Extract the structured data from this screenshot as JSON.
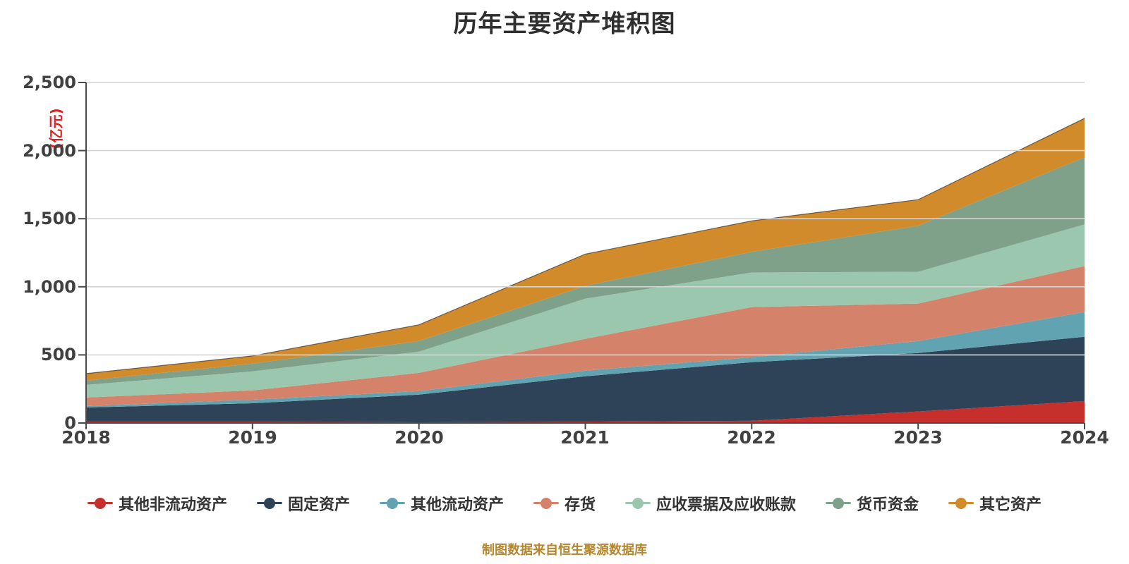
{
  "title": "历年主要资产堆积图",
  "y_unit_label": "(亿元)",
  "footer_note": "制图数据来自恒生聚源数据库",
  "chart_data": {
    "type": "area",
    "stacked": true,
    "title": "历年主要资产堆积图",
    "ylabel": "(亿元)",
    "xlabel": "",
    "ylim": [
      0,
      2500
    ],
    "grid": true,
    "legend_position": "bottom",
    "x_labels": [
      "2018",
      "2019",
      "2020",
      "2021",
      "2022",
      "2023",
      "2024"
    ],
    "y_ticks_top_to_bottom": [
      "2,500",
      "2,000",
      "1,500",
      "1,000",
      "500",
      "0"
    ],
    "series": [
      {
        "name": "其他非流动资产",
        "color": "#c5302c",
        "values": [
          10,
          10,
          5,
          10,
          16,
          85,
          161
        ]
      },
      {
        "name": "固定资产",
        "color": "#2f4358",
        "values": [
          104,
          135,
          203,
          333,
          430,
          429,
          472
        ]
      },
      {
        "name": "其他流动资产",
        "color": "#62a3b2",
        "values": [
          11,
          26,
          26,
          41,
          37,
          88,
          182
        ]
      },
      {
        "name": "存货",
        "color": "#d5826a",
        "values": [
          62,
          68,
          134,
          234,
          368,
          275,
          337
        ]
      },
      {
        "name": "应收票据及应收账款",
        "color": "#9ac7ad",
        "values": [
          93,
          140,
          156,
          295,
          254,
          233,
          306
        ]
      },
      {
        "name": "货币资金",
        "color": "#7fa089",
        "values": [
          31,
          57,
          78,
          94,
          151,
          338,
          493
        ]
      },
      {
        "name": "其它资产",
        "color": "#d18b2a",
        "values": [
          52,
          57,
          119,
          233,
          228,
          192,
          286
        ]
      }
    ],
    "totals_by_year": [
      363,
      493,
      721,
      1240,
      1484,
      1640,
      2237
    ]
  },
  "colors": {
    "axis": "#4a4a4a",
    "grid": "#d4d4d4",
    "tick_text": "#404040",
    "title_text": "#2f2f2f",
    "unit_label": "#e01f1f",
    "footer_text": "#b5862b",
    "total_line": "rgba(25,25,25,0.6)"
  }
}
